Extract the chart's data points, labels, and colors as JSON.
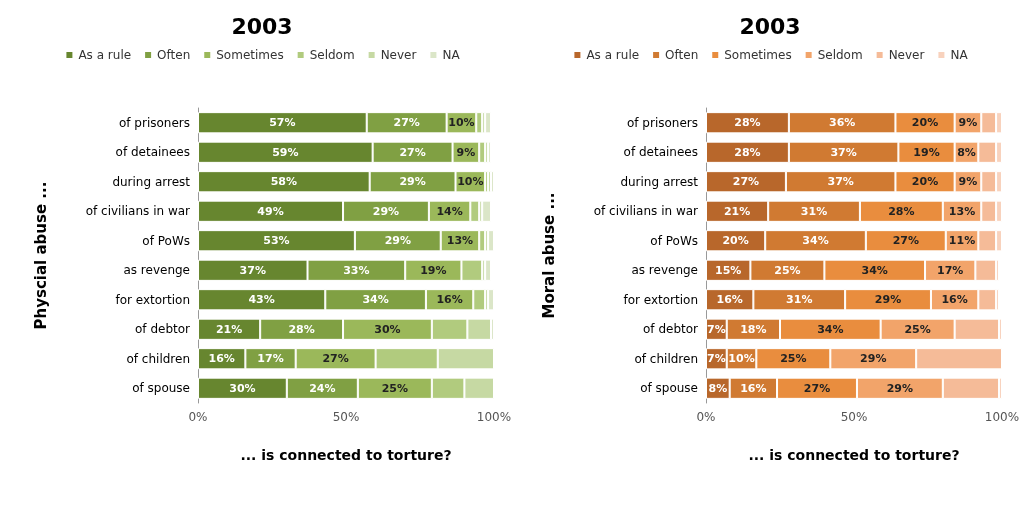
{
  "chart_data": [
    {
      "type": "bar",
      "orientation": "horizontal",
      "stacked": true,
      "title": "2003",
      "xlabel": "... is connected to torture?",
      "ylabel": "Physcial abuse ...",
      "legend": "top",
      "categories": [
        "of prisoners",
        "of detainees",
        "during arrest",
        "of civilians in war",
        "of PoWs",
        "as revenge",
        "for extortion",
        "of debtor",
        "of children",
        "of spouse"
      ],
      "xlim": [
        0,
        100
      ],
      "xticks": [
        {
          "value": 0,
          "label": "0%"
        },
        {
          "value": 50,
          "label": "50%"
        },
        {
          "value": 100,
          "label": "100%"
        }
      ],
      "series": [
        {
          "name": "As a rule",
          "color": "#67862f",
          "values": [
            57,
            59,
            58,
            49,
            53,
            37,
            43,
            21,
            16,
            30
          ],
          "value_labels": [
            "57%",
            "59%",
            "58%",
            "49%",
            "53%",
            "37%",
            "43%",
            "21%",
            "16%",
            "30%"
          ]
        },
        {
          "name": "Often",
          "color": "#80a043",
          "values": [
            27,
            27,
            29,
            29,
            29,
            33,
            34,
            28,
            17,
            24
          ],
          "value_labels": [
            "27%",
            "27%",
            "29%",
            "29%",
            "29%",
            "33%",
            "34%",
            "28%",
            "17%",
            "24%"
          ]
        },
        {
          "name": "Sometimes",
          "color": "#9bb85a",
          "values": [
            10,
            9,
            10,
            14,
            13,
            19,
            16,
            30,
            27,
            25
          ],
          "value_labels": [
            "10%",
            "9%",
            "10%",
            "14%",
            "13%",
            "19%",
            "16%",
            "30%",
            "27%",
            "25%"
          ]
        },
        {
          "name": "Seldom",
          "color": "#b1cb7e",
          "values": [
            2,
            2,
            1,
            3,
            2,
            7,
            4,
            12,
            21,
            11
          ]
        },
        {
          "name": "Never",
          "color": "#c6d9a3",
          "values": [
            1,
            1,
            1,
            1,
            1,
            1,
            1,
            8,
            19,
            10
          ]
        },
        {
          "name": "NA",
          "color": "#dbe6c8",
          "values": [
            2,
            1,
            1,
            3,
            2,
            2,
            2,
            1,
            null,
            null
          ]
        }
      ]
    },
    {
      "type": "bar",
      "orientation": "horizontal",
      "stacked": true,
      "title": "2003",
      "xlabel": "... is connected to torture?",
      "ylabel": "Moral abuse ...",
      "legend": "top",
      "categories": [
        "of prisoners",
        "of detainees",
        "during arrest",
        "of civilians in war",
        "of PoWs",
        "as revenge",
        "for extortion",
        "of debtor",
        "of children",
        "of spouse"
      ],
      "xlim": [
        0,
        100
      ],
      "xticks": [
        {
          "value": 0,
          "label": "0%"
        },
        {
          "value": 50,
          "label": "50%"
        },
        {
          "value": 100,
          "label": "100%"
        }
      ],
      "series": [
        {
          "name": "As a rule",
          "color": "#b8672b",
          "values": [
            28,
            28,
            27,
            21,
            20,
            15,
            16,
            7,
            7,
            8
          ],
          "value_labels": [
            "28%",
            "28%",
            "27%",
            "21%",
            "20%",
            "15%",
            "16%",
            "7%",
            "7%",
            "8%"
          ]
        },
        {
          "name": "Often",
          "color": "#d07a32",
          "values": [
            36,
            37,
            37,
            31,
            34,
            25,
            31,
            18,
            10,
            16
          ],
          "value_labels": [
            "36%",
            "37%",
            "37%",
            "31%",
            "34%",
            "25%",
            "31%",
            "18%",
            "10%",
            "16%"
          ]
        },
        {
          "name": "Sometimes",
          "color": "#e98d3e",
          "values": [
            20,
            19,
            20,
            28,
            27,
            34,
            29,
            34,
            25,
            27
          ],
          "value_labels": [
            "20%",
            "19%",
            "20%",
            "28%",
            "27%",
            "34%",
            "29%",
            "34%",
            "25%",
            "27%"
          ]
        },
        {
          "name": "Seldom",
          "color": "#f2a46a",
          "values": [
            9,
            8,
            9,
            13,
            11,
            17,
            16,
            25,
            29,
            29
          ],
          "value_labels": [
            "9%",
            "8%",
            "9%",
            "13%",
            "11%",
            "17%",
            "16%",
            "25%",
            "29%",
            "29%"
          ]
        },
        {
          "name": "Never",
          "color": "#f5bb98",
          "values": [
            5,
            6,
            5,
            5,
            6,
            7,
            6,
            15,
            29,
            19
          ]
        },
        {
          "name": "NA",
          "color": "#f8d2bd",
          "values": [
            2,
            2,
            2,
            2,
            2,
            1,
            1,
            1,
            null,
            1
          ]
        }
      ]
    }
  ]
}
